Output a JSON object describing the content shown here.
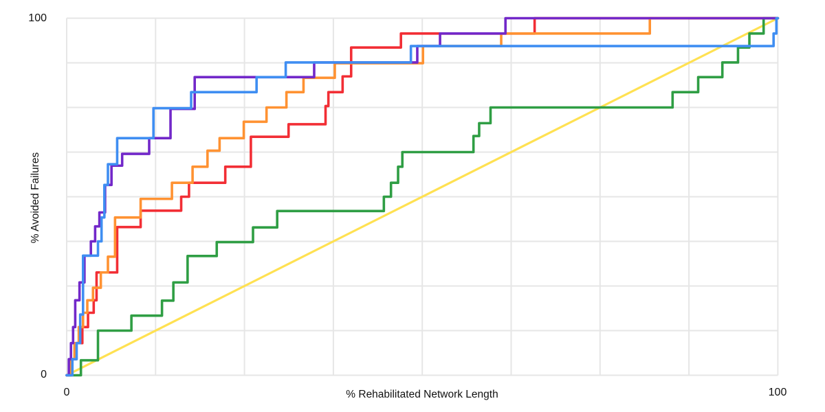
{
  "chart_data": {
    "type": "line",
    "subtype": "step_after",
    "title": "",
    "xlabel": "% Rehabilitated Network Length",
    "ylabel": "% Avoided Failures",
    "xlim": [
      0,
      100
    ],
    "ylim": [
      0,
      100
    ],
    "x_tick_labels": [
      "0",
      "100"
    ],
    "y_tick_labels": [
      "0",
      "100"
    ],
    "grid": {
      "show": true,
      "interval": 12.5,
      "color": "#e6e6e6"
    },
    "legend": {
      "show": false
    },
    "background": "#ffffff",
    "series": [
      {
        "name": "diagonal-reference",
        "color_name": "yellow",
        "color": "#ffe152",
        "line_type": "straight",
        "points": [
          [
            0,
            0
          ],
          [
            100,
            100
          ]
        ]
      },
      {
        "name": "red-curve",
        "color_name": "red",
        "color": "#f22e35",
        "line_type": "step",
        "start": [
          0,
          0
        ],
        "steps": [
          [
            0.6,
            4.5
          ],
          [
            1.3,
            9
          ],
          [
            2.2,
            13.5
          ],
          [
            3,
            17.5
          ],
          [
            3.8,
            21
          ],
          [
            4.2,
            28.8
          ],
          [
            7.1,
            41.5
          ],
          [
            10.4,
            46.1
          ],
          [
            16.1,
            50
          ],
          [
            17.2,
            53.9
          ],
          [
            22.3,
            58.4
          ],
          [
            25.9,
            66.8
          ],
          [
            31.2,
            70.3
          ],
          [
            36.4,
            75.4
          ],
          [
            36.8,
            79.3
          ],
          [
            38.8,
            83.7
          ],
          [
            40,
            91.8
          ],
          [
            47,
            95.7
          ],
          [
            65.8,
            100
          ]
        ],
        "end": [
          100,
          100
        ]
      },
      {
        "name": "orange-curve",
        "color_name": "orange",
        "color": "#ff9232",
        "line_type": "step",
        "start": [
          0,
          0
        ],
        "steps": [
          [
            0.6,
            4.5
          ],
          [
            1.1,
            9
          ],
          [
            1.7,
            13.5
          ],
          [
            2.3,
            17.5
          ],
          [
            2.9,
            21
          ],
          [
            3.7,
            24.5
          ],
          [
            4.8,
            28.8
          ],
          [
            5.8,
            33.2
          ],
          [
            6.8,
            44.2
          ],
          [
            10.4,
            49.4
          ],
          [
            14.8,
            53.9
          ],
          [
            17.7,
            58.4
          ],
          [
            19.8,
            62.9
          ],
          [
            21.5,
            66.4
          ],
          [
            24.9,
            71
          ],
          [
            28.1,
            75
          ],
          [
            30.9,
            79.3
          ],
          [
            33.3,
            83.3
          ],
          [
            37.7,
            87.4
          ],
          [
            50.1,
            92.2
          ],
          [
            61.1,
            95.7
          ],
          [
            82,
            100
          ]
        ],
        "end": [
          100,
          100
        ]
      },
      {
        "name": "green-curve",
        "color_name": "green",
        "color": "#2f9e44",
        "line_type": "step",
        "start": [
          0,
          0
        ],
        "steps": [
          [
            2,
            4.2
          ],
          [
            4.4,
            12.5
          ],
          [
            9.1,
            16.7
          ],
          [
            13.4,
            20.9
          ],
          [
            15,
            26
          ],
          [
            17,
            33.4
          ],
          [
            21.1,
            37.3
          ],
          [
            26.2,
            41.4
          ],
          [
            29.6,
            46
          ],
          [
            44.6,
            50
          ],
          [
            45.6,
            53.9
          ],
          [
            46.6,
            58.4
          ],
          [
            47.2,
            62.5
          ],
          [
            57.2,
            67
          ],
          [
            58,
            70.6
          ],
          [
            59.6,
            75
          ],
          [
            85.2,
            79.3
          ],
          [
            88.8,
            83.5
          ],
          [
            92.2,
            87.6
          ],
          [
            94.4,
            91.8
          ],
          [
            96,
            95.7
          ],
          [
            98,
            100
          ]
        ],
        "end": [
          100,
          100
        ]
      },
      {
        "name": "purple-curve",
        "color_name": "purple",
        "color": "#7228c9",
        "line_type": "step",
        "start": [
          0,
          0
        ],
        "steps": [
          [
            0.3,
            4.5
          ],
          [
            0.6,
            9
          ],
          [
            0.9,
            13.5
          ],
          [
            1.2,
            21
          ],
          [
            1.8,
            26
          ],
          [
            2.5,
            33.5
          ],
          [
            3.4,
            37.5
          ],
          [
            4,
            41.7
          ],
          [
            4.6,
            45.6
          ],
          [
            5.4,
            53.3
          ],
          [
            6.3,
            58.7
          ],
          [
            7.8,
            62
          ],
          [
            11.6,
            66.4
          ],
          [
            14.6,
            74.6
          ],
          [
            18,
            83.5
          ],
          [
            34.8,
            87.6
          ],
          [
            49.3,
            92.2
          ],
          [
            52.5,
            95.7
          ],
          [
            61.7,
            100
          ]
        ],
        "end": [
          100,
          100
        ]
      },
      {
        "name": "blue-curve",
        "color_name": "blue",
        "color": "#3f8ef2",
        "line_type": "step",
        "start": [
          0,
          0
        ],
        "steps": [
          [
            0.8,
            4.5
          ],
          [
            1.4,
            9
          ],
          [
            1.9,
            17
          ],
          [
            2.3,
            33.5
          ],
          [
            4.4,
            37.5
          ],
          [
            4.9,
            44.2
          ],
          [
            5.3,
            53.3
          ],
          [
            5.8,
            59.1
          ],
          [
            7.1,
            66.4
          ],
          [
            12.2,
            74.8
          ],
          [
            17.5,
            79.3
          ],
          [
            26.7,
            83.5
          ],
          [
            30.8,
            87.6
          ],
          [
            48.4,
            92.2
          ],
          [
            99.4,
            95.7
          ],
          [
            99.8,
            100
          ]
        ],
        "end": [
          100,
          100
        ]
      }
    ]
  }
}
